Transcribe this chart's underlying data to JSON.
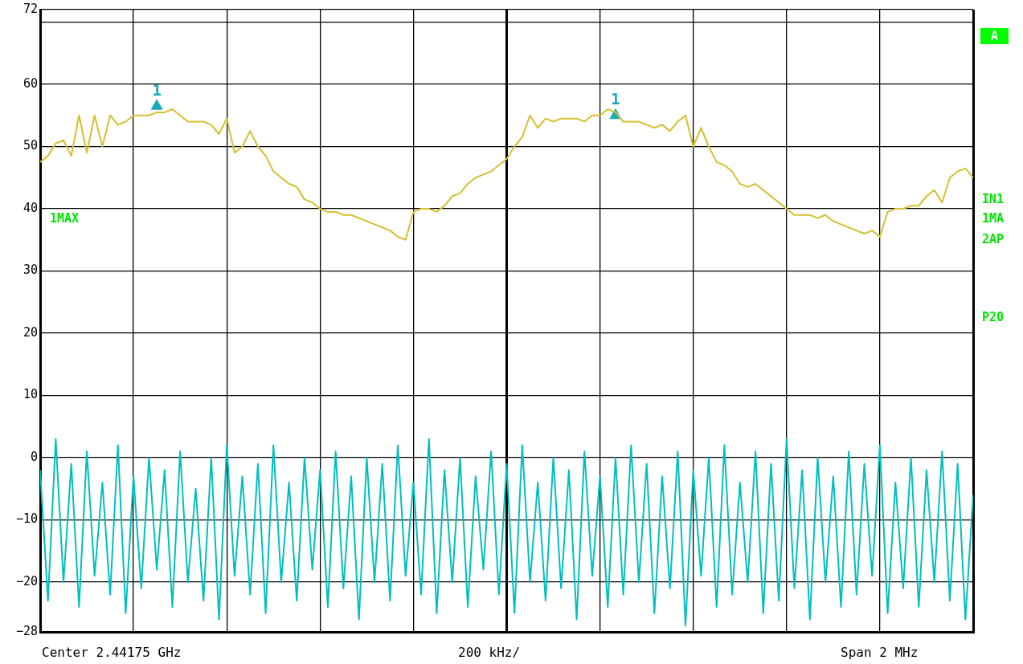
{
  "chart_data": {
    "type": "line",
    "categories": [
      null,
      null,
      null,
      null,
      null,
      null,
      null,
      null,
      null,
      null,
      null,
      null,
      null,
      null,
      null,
      null,
      null,
      null,
      null,
      null,
      null,
      null,
      null,
      null,
      null,
      null,
      null,
      null,
      null,
      null,
      null,
      null,
      null,
      null,
      null,
      null,
      null,
      null,
      null,
      null,
      null,
      null,
      null,
      null,
      null,
      null,
      null,
      null,
      null,
      null,
      null,
      null,
      null,
      null,
      null,
      null,
      null,
      null,
      null,
      null,
      null,
      null,
      null,
      null,
      null,
      null,
      null,
      null,
      null,
      null,
      null,
      null,
      null,
      null,
      null,
      null,
      null,
      null,
      null,
      null,
      null,
      null,
      null,
      null,
      null,
      null,
      null,
      null,
      null,
      null,
      null,
      null,
      null,
      null,
      null,
      null,
      null,
      null,
      null,
      null,
      null,
      null,
      null,
      null,
      null,
      null,
      null,
      null,
      null,
      null,
      null,
      null,
      null,
      null,
      null,
      null,
      null,
      null,
      null,
      null,
      null
    ],
    "series": [
      {
        "color": "#d4c032",
        "values": [
          47.5,
          48.5,
          50.5,
          51,
          48.5,
          55,
          49,
          55,
          50,
          55,
          53.5,
          54,
          55,
          55,
          55,
          55.5,
          55.5,
          56,
          55,
          54,
          54,
          54,
          53.5,
          52,
          54.5,
          49,
          50,
          52.5,
          50,
          48.5,
          46,
          45,
          44,
          43.5,
          41.5,
          41,
          40,
          39.5,
          39.5,
          39,
          39,
          38.5,
          38,
          37.5,
          37,
          36.5,
          35.5,
          35,
          39.5,
          40,
          40,
          39.5,
          40.5,
          42,
          42.5,
          44,
          45,
          45.5,
          46,
          47,
          48,
          50,
          51.5,
          55,
          53,
          54.5,
          54,
          54.5,
          54.5,
          54.5,
          54,
          55,
          55,
          56,
          55.5,
          54,
          54,
          54,
          53.5,
          53,
          53.5,
          52.5,
          54,
          55,
          50,
          53,
          50,
          47.5,
          47,
          46,
          44,
          43.5,
          44,
          43,
          42,
          41,
          40,
          39,
          39,
          39,
          38.5,
          39,
          38,
          37.5,
          37,
          36.5,
          36,
          36.5,
          35.5,
          39.5,
          40,
          40,
          40.5,
          40.5,
          42,
          43,
          41,
          45,
          46,
          46.5,
          45
        ]
      },
      {
        "color": "#00bfbf",
        "values": [
          -2,
          -23,
          3,
          -20,
          -1,
          -24,
          1,
          -19,
          -4,
          -22,
          2,
          -25,
          -3,
          -21,
          0,
          -18,
          -2,
          -24,
          1,
          -20,
          -5,
          -23,
          0,
          -26,
          2,
          -19,
          -3,
          -22,
          -1,
          -25,
          2,
          -20,
          -4,
          -23,
          0,
          -18,
          -2,
          -24,
          1,
          -21,
          -3,
          -26,
          0,
          -20,
          -1,
          -23,
          2,
          -19,
          -4,
          -22,
          3,
          -25,
          -2,
          -20,
          0,
          -24,
          -3,
          -18,
          1,
          -22,
          -1,
          -25,
          2,
          -20,
          -4,
          -23,
          0,
          -21,
          -2,
          -26,
          1,
          -19,
          -3,
          -24,
          0,
          -22,
          2,
          -20,
          -1,
          -25,
          -3,
          -21,
          1,
          -27,
          -2,
          -19,
          0,
          -24,
          2,
          -22,
          -4,
          -20,
          1,
          -25,
          -1,
          -23,
          3,
          -21,
          -2,
          -26,
          0,
          -20,
          -3,
          -24,
          1,
          -22,
          -1,
          -19,
          2,
          -25,
          -4,
          -21,
          0,
          -24,
          -2,
          -20,
          1,
          -23,
          -1,
          -26,
          -6
        ]
      },
      {
        "name": "1",
        "type": "scatter",
        "marker": "triangle",
        "color": "#19a9b9",
        "values": [
          null,
          null,
          null,
          null,
          null,
          null,
          null,
          null,
          null,
          null,
          null,
          null,
          null,
          null,
          null,
          56.5,
          null,
          null,
          null,
          null,
          null,
          null,
          null,
          null,
          null,
          null,
          null,
          null,
          null,
          null,
          null,
          null,
          null,
          null,
          null,
          null,
          null,
          null,
          null,
          null,
          null,
          null,
          null,
          null,
          null,
          null,
          null,
          null,
          null,
          null,
          null,
          null,
          null,
          null,
          null,
          null,
          null,
          null,
          null,
          null,
          null,
          null,
          null,
          null,
          null,
          null,
          null,
          null,
          null,
          null,
          null,
          null,
          null,
          null,
          55,
          null,
          null,
          null,
          null,
          null,
          null,
          null,
          null,
          null,
          null,
          null,
          null,
          null,
          null,
          null,
          null,
          null,
          null,
          null,
          null,
          null,
          null,
          null,
          null,
          null,
          null,
          null,
          null,
          null,
          null,
          null,
          null,
          null,
          null,
          null,
          null,
          null,
          null,
          null,
          null,
          null,
          null,
          null,
          null,
          null,
          null
        ]
      }
    ],
    "ylim": [
      -28,
      72
    ],
    "yticks": [
      72,
      {
        "value": 70,
        "label": null
      },
      60,
      50,
      40,
      30,
      20,
      10,
      0,
      {
        "value": -10,
        "label": "−10"
      },
      {
        "value": -20,
        "label": "−20"
      },
      {
        "value": -28,
        "label": "−28"
      }
    ],
    "grid": true,
    "annotations": [
      "Center 2.44175 GHz",
      "200 kHz/",
      "Span 2 MHz",
      "1MAX",
      "A",
      "IN1",
      "1MA",
      "2AP",
      "P20"
    ]
  }
}
